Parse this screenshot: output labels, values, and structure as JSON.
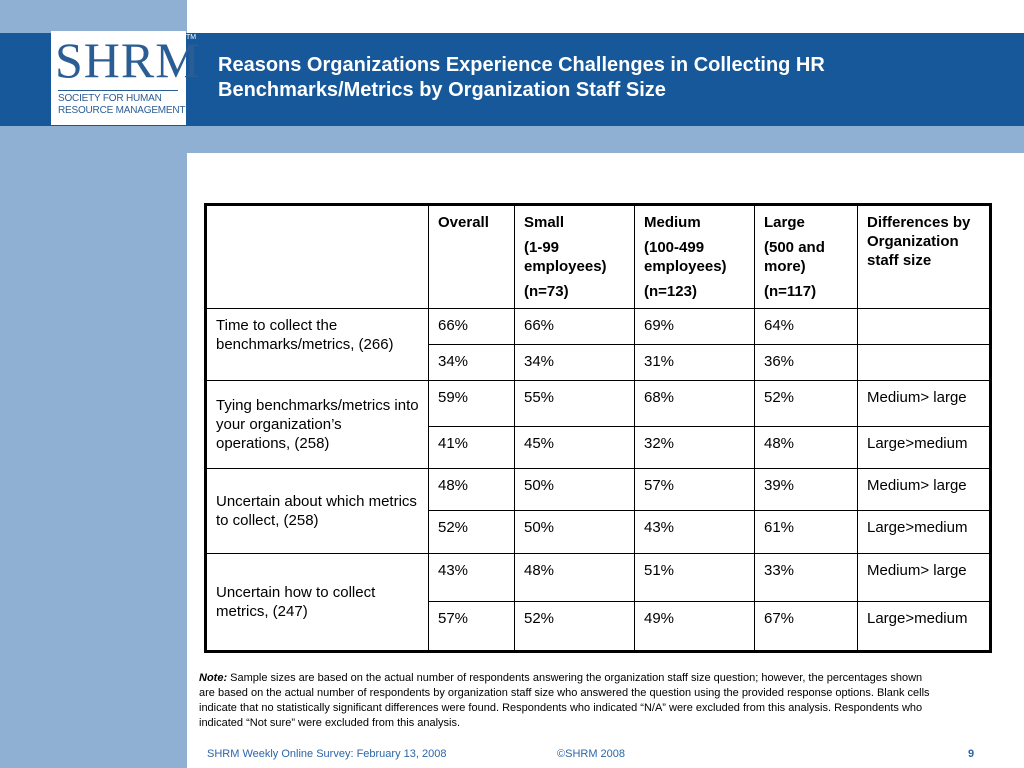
{
  "colors": {
    "header_blue": "#16589a",
    "sidebar_blue": "#8fb0d2",
    "footer_text": "#2b66a8"
  },
  "logo": {
    "mark": "SHRM",
    "tm": "TM",
    "line1": "SOCIETY FOR HUMAN",
    "line2": "RESOURCE MANAGEMENT"
  },
  "title": "Reasons Organizations Experience Challenges in Collecting HR Benchmarks/Metrics by Organization Staff Size",
  "table": {
    "headers": {
      "overall": "Overall",
      "small": {
        "name": "Small",
        "range": "(1-99 employees)",
        "n": "(n=73)"
      },
      "medium": {
        "name": "Medium",
        "range": "(100-499 employees)",
        "n": "(n=123)"
      },
      "large": {
        "name": "Large",
        "range": "(500 and more)",
        "n": "(n=117)"
      },
      "differences": "Differences by Organization staff size"
    },
    "groups": [
      {
        "label": "Time to collect the benchmarks/metrics, (266)",
        "rows": [
          {
            "overall": "66%",
            "small": "66%",
            "medium": "69%",
            "large": "64%",
            "diff": ""
          },
          {
            "overall": "34%",
            "small": "34%",
            "medium": "31%",
            "large": "36%",
            "diff": ""
          }
        ]
      },
      {
        "label": "Tying benchmarks/metrics into your organization’s operations, (258)",
        "rows": [
          {
            "overall": "59%",
            "small": "55%",
            "medium": "68%",
            "large": "52%",
            "diff": "Medium> large"
          },
          {
            "overall": "41%",
            "small": "45%",
            "medium": "32%",
            "large": "48%",
            "diff": "Large>medium"
          }
        ]
      },
      {
        "label": "Uncertain about which metrics to collect, (258)",
        "rows": [
          {
            "overall": "48%",
            "small": "50%",
            "medium": "57%",
            "large": "39%",
            "diff": "Medium> large"
          },
          {
            "overall": "52%",
            "small": "50%",
            "medium": "43%",
            "large": "61%",
            "diff": "Large>medium"
          }
        ]
      },
      {
        "label": "Uncertain how to collect metrics, (247)",
        "rows": [
          {
            "overall": "43%",
            "small": "48%",
            "medium": "51%",
            "large": "33%",
            "diff": "Medium> large"
          },
          {
            "overall": "57%",
            "small": "52%",
            "medium": "49%",
            "large": "67%",
            "diff": "Large>medium"
          }
        ]
      }
    ]
  },
  "note": {
    "label": "Note:",
    "text": "Sample sizes are based on the actual number of respondents answering the organization staff size question; however, the percentages shown are based on the actual number of respondents by organization staff size who answered the question using the provided response options. Blank cells indicate that no statistically significant differences were found. Respondents who indicated “N/A” were excluded from this analysis. Respondents who indicated “Not sure” were excluded from this analysis."
  },
  "footer": {
    "source": "SHRM Weekly Online Survey: February  13, 2008",
    "copyright": "©SHRM 2008",
    "page": "9"
  }
}
